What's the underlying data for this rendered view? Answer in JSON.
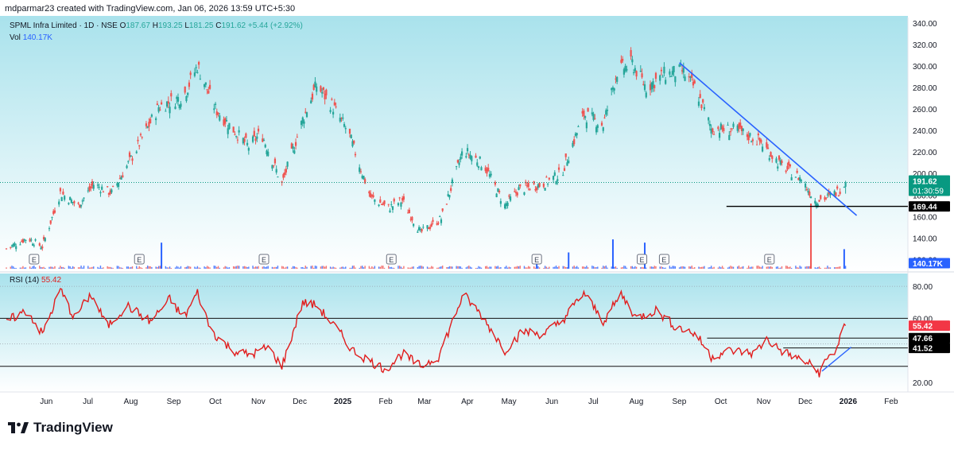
{
  "header": {
    "credit": "mdparmar23 created with TradingView.com, Jan 06, 2026 13:59 UTC+5:30"
  },
  "legend": {
    "symbol": "SPML Infra Limited · 1D · NSE",
    "o_label": "O",
    "o_value": "187.67",
    "h_label": "H",
    "h_value": "193.25",
    "l_label": "L",
    "l_value": "181.25",
    "c_label": "C",
    "c_value": "191.62",
    "change": "+5.44 (+2.92%)",
    "vol_label": "Vol",
    "vol_value": "140.17K"
  },
  "rsi_legend": {
    "label": "RSI (14)",
    "value": "55.42"
  },
  "price_badge": {
    "price": "191.62",
    "countdown": "01:30:59"
  },
  "level_badge": "169.44",
  "vol_badge": "140.17K",
  "rsi_badges": {
    "value": "55.42",
    "level_upper": "47.66",
    "level_lower": "41.52"
  },
  "earnings_marker": "E",
  "brand": {
    "name": "TradingView"
  },
  "colors": {
    "bg_top": "#a9e2ec",
    "bg_bottom": "#ffffff",
    "up": "#26a69a",
    "down": "#ef5350",
    "trendline": "#2962ff",
    "rsi_line": "#e11d1d",
    "price_badge": "#089981",
    "level_line": "#000000",
    "vol_up": "#2962ff",
    "vol_down": "#ef5350"
  },
  "chart_data": [
    {
      "type": "candlestick",
      "title": "SPML Infra Limited · 1D · NSE",
      "y_ticks": [
        "340.00",
        "320.00",
        "300.00",
        "280.00",
        "260.00",
        "240.00",
        "220.00",
        "200.00",
        "180.00",
        "160.00",
        "140.00",
        "120.00"
      ],
      "ylim": [
        110,
        345
      ],
      "x_ticks": [
        "Jun",
        "Jul",
        "Aug",
        "Sep",
        "Oct",
        "Nov",
        "Dec",
        "2025",
        "Feb",
        "Mar",
        "Apr",
        "May",
        "Jun",
        "Jul",
        "Aug",
        "Sep",
        "Oct",
        "Nov",
        "Dec",
        "2026",
        "Feb"
      ],
      "anchors": [
        {
          "date": "2024-05-10",
          "close": 130
        },
        {
          "date": "2024-05-25",
          "close": 140
        },
        {
          "date": "2024-06-05",
          "close": 132
        },
        {
          "date": "2024-06-18",
          "close": 182
        },
        {
          "date": "2024-07-01",
          "close": 170
        },
        {
          "date": "2024-07-12",
          "close": 190
        },
        {
          "date": "2024-07-25",
          "close": 182
        },
        {
          "date": "2024-08-10",
          "close": 218
        },
        {
          "date": "2024-08-28",
          "close": 262
        },
        {
          "date": "2024-09-15",
          "close": 272
        },
        {
          "date": "2024-09-25",
          "close": 300
        },
        {
          "date": "2024-10-08",
          "close": 260
        },
        {
          "date": "2024-10-20",
          "close": 242
        },
        {
          "date": "2024-11-01",
          "close": 225
        },
        {
          "date": "2024-11-10",
          "close": 238
        },
        {
          "date": "2024-11-25",
          "close": 190
        },
        {
          "date": "2024-12-10",
          "close": 250
        },
        {
          "date": "2024-12-20",
          "close": 282
        },
        {
          "date": "2025-01-01",
          "close": 262
        },
        {
          "date": "2025-01-12",
          "close": 238
        },
        {
          "date": "2025-01-28",
          "close": 178
        },
        {
          "date": "2025-02-10",
          "close": 168
        },
        {
          "date": "2025-02-20",
          "close": 175
        },
        {
          "date": "2025-03-05",
          "close": 145
        },
        {
          "date": "2025-03-20",
          "close": 158
        },
        {
          "date": "2025-04-05",
          "close": 222
        },
        {
          "date": "2025-04-20",
          "close": 208
        },
        {
          "date": "2025-05-05",
          "close": 170
        },
        {
          "date": "2025-05-15",
          "close": 185
        },
        {
          "date": "2025-06-01",
          "close": 190
        },
        {
          "date": "2025-06-15",
          "close": 200
        },
        {
          "date": "2025-07-01",
          "close": 255
        },
        {
          "date": "2025-07-15",
          "close": 245
        },
        {
          "date": "2025-07-25",
          "close": 295
        },
        {
          "date": "2025-08-05",
          "close": 302
        },
        {
          "date": "2025-08-15",
          "close": 280
        },
        {
          "date": "2025-08-28",
          "close": 292
        },
        {
          "date": "2025-09-10",
          "close": 295
        },
        {
          "date": "2025-09-20",
          "close": 278
        },
        {
          "date": "2025-10-01",
          "close": 242
        },
        {
          "date": "2025-10-20",
          "close": 240
        },
        {
          "date": "2025-11-05",
          "close": 230
        },
        {
          "date": "2025-11-20",
          "close": 208
        },
        {
          "date": "2025-12-05",
          "close": 195
        },
        {
          "date": "2025-12-15",
          "close": 175
        },
        {
          "date": "2025-12-25",
          "close": 178
        },
        {
          "date": "2026-01-01",
          "close": 184
        },
        {
          "date": "2026-01-06",
          "close": 191.62
        }
      ],
      "support_level": 169.44,
      "trendline": [
        {
          "date": "2025-09-08",
          "price": 303
        },
        {
          "date": "2026-01-14",
          "price": 161
        }
      ],
      "earnings_dates": [
        "2024-05-30",
        "2024-08-14",
        "2024-11-12",
        "2025-02-12",
        "2025-05-28",
        "2025-08-12",
        "2025-08-28",
        "2025-11-12"
      ],
      "volume_spikes": [
        {
          "date": "2024-08-30",
          "vol": 0.4,
          "up": true
        },
        {
          "date": "2025-05-28",
          "vol": 0.2,
          "up": true
        },
        {
          "date": "2025-06-20",
          "vol": 0.25,
          "up": true
        },
        {
          "date": "2025-07-22",
          "vol": 0.45,
          "up": true
        },
        {
          "date": "2025-08-14",
          "vol": 0.4,
          "up": true
        },
        {
          "date": "2025-12-12",
          "vol": 1.0,
          "up": false
        },
        {
          "date": "2026-01-05",
          "vol": 0.3,
          "up": true
        }
      ]
    },
    {
      "type": "line",
      "title": "RSI (14)",
      "y_ticks": [
        "80.00",
        "60.00",
        "20.00"
      ],
      "ylim": [
        14,
        88
      ],
      "series": [
        {
          "name": "RSI (14)",
          "values": [
            {
              "date": "2024-05-10",
              "v": 58
            },
            {
              "date": "2024-05-25",
              "v": 65
            },
            {
              "date": "2024-06-05",
              "v": 50
            },
            {
              "date": "2024-06-18",
              "v": 78
            },
            {
              "date": "2024-06-28",
              "v": 60
            },
            {
              "date": "2024-07-10",
              "v": 75
            },
            {
              "date": "2024-07-22",
              "v": 55
            },
            {
              "date": "2024-08-05",
              "v": 68
            },
            {
              "date": "2024-08-22",
              "v": 58
            },
            {
              "date": "2024-09-05",
              "v": 72
            },
            {
              "date": "2024-09-15",
              "v": 60
            },
            {
              "date": "2024-09-25",
              "v": 76
            },
            {
              "date": "2024-10-05",
              "v": 52
            },
            {
              "date": "2024-10-20",
              "v": 40
            },
            {
              "date": "2024-11-02",
              "v": 37
            },
            {
              "date": "2024-11-15",
              "v": 42
            },
            {
              "date": "2024-11-25",
              "v": 30
            },
            {
              "date": "2024-12-10",
              "v": 70
            },
            {
              "date": "2024-12-20",
              "v": 68
            },
            {
              "date": "2025-01-05",
              "v": 52
            },
            {
              "date": "2025-01-15",
              "v": 40
            },
            {
              "date": "2025-01-28",
              "v": 33
            },
            {
              "date": "2025-02-08",
              "v": 28
            },
            {
              "date": "2025-02-20",
              "v": 38
            },
            {
              "date": "2025-03-05",
              "v": 30
            },
            {
              "date": "2025-03-18",
              "v": 36
            },
            {
              "date": "2025-04-05",
              "v": 75
            },
            {
              "date": "2025-04-18",
              "v": 62
            },
            {
              "date": "2025-05-05",
              "v": 40
            },
            {
              "date": "2025-05-18",
              "v": 52
            },
            {
              "date": "2025-06-01",
              "v": 50
            },
            {
              "date": "2025-06-15",
              "v": 58
            },
            {
              "date": "2025-07-01",
              "v": 76
            },
            {
              "date": "2025-07-15",
              "v": 58
            },
            {
              "date": "2025-07-28",
              "v": 75
            },
            {
              "date": "2025-08-08",
              "v": 60
            },
            {
              "date": "2025-08-22",
              "v": 65
            },
            {
              "date": "2025-09-05",
              "v": 55
            },
            {
              "date": "2025-09-20",
              "v": 50
            },
            {
              "date": "2025-10-01",
              "v": 36
            },
            {
              "date": "2025-10-15",
              "v": 40
            },
            {
              "date": "2025-11-01",
              "v": 38
            },
            {
              "date": "2025-11-10",
              "v": 47
            },
            {
              "date": "2025-11-20",
              "v": 40
            },
            {
              "date": "2025-12-02",
              "v": 35
            },
            {
              "date": "2025-12-10",
              "v": 32
            },
            {
              "date": "2025-12-18",
              "v": 26
            },
            {
              "date": "2025-12-24",
              "v": 35
            },
            {
              "date": "2025-12-30",
              "v": 40
            },
            {
              "date": "2026-01-02",
              "v": 48
            },
            {
              "date": "2026-01-05",
              "v": 56
            },
            {
              "date": "2026-01-06",
              "v": 55.42
            }
          ]
        }
      ],
      "levels": [
        60,
        47.66,
        41.52,
        30
      ],
      "trendline": [
        {
          "date": "2025-12-20",
          "v": 27
        },
        {
          "date": "2026-01-10",
          "v": 42
        }
      ]
    }
  ]
}
